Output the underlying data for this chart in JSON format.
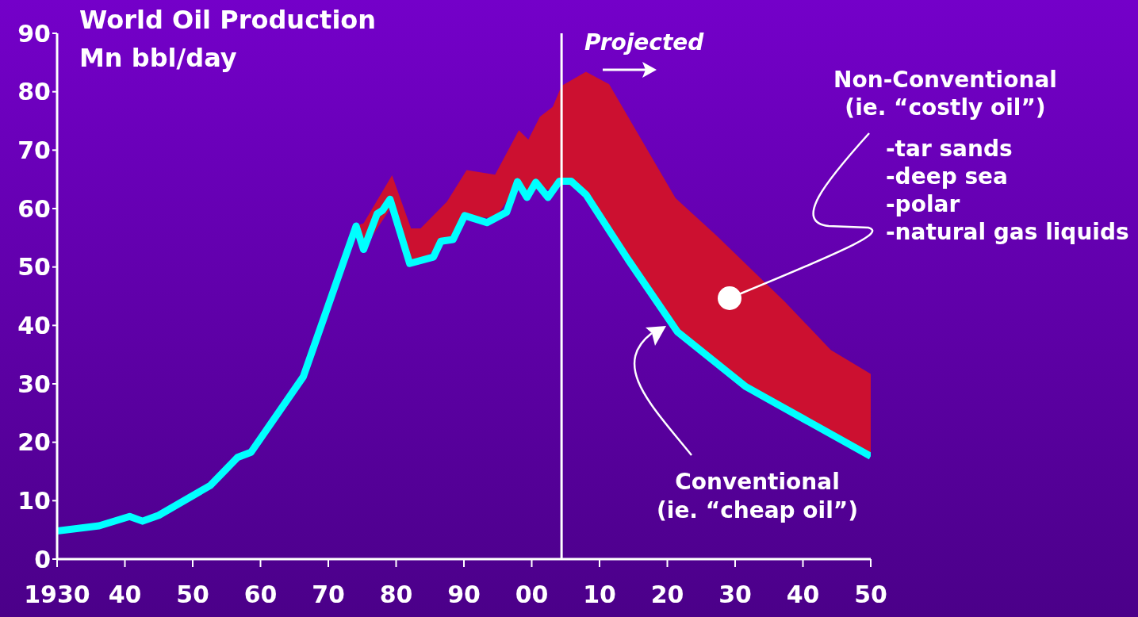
{
  "chart_data": {
    "type": "line",
    "title": "World Oil Production",
    "ylabel": "Mn bbl/day",
    "xlim": [
      1930,
      2050
    ],
    "xticks": [
      {
        "value": 1930,
        "label": "1930"
      },
      {
        "value": 1940,
        "label": "40"
      },
      {
        "value": 1950,
        "label": "50"
      },
      {
        "value": 1960,
        "label": "60"
      },
      {
        "value": 1970,
        "label": "70"
      },
      {
        "value": 1980,
        "label": "80"
      },
      {
        "value": 1990,
        "label": "90"
      },
      {
        "value": 2000,
        "label": "00"
      },
      {
        "value": 2010,
        "label": "10"
      },
      {
        "value": 2020,
        "label": "20"
      },
      {
        "value": 2030,
        "label": "30"
      },
      {
        "value": 2040,
        "label": "40"
      },
      {
        "value": 2050,
        "label": "50"
      }
    ],
    "ylim": [
      0,
      90
    ],
    "yticks": [
      0,
      10,
      20,
      30,
      40,
      50,
      60,
      70,
      80,
      90
    ],
    "series": [
      {
        "type": "area",
        "color": "#cc1030",
        "x": [
          1974.1,
          1975.2,
          1979.4,
          1982.2,
          1983.6,
          1987.5,
          1990.4,
          1994.6,
          1998.1,
          1999.5,
          2001.2,
          2003.1,
          2004.4,
          2008,
          2011.4,
          2021.2,
          2027.4,
          2037.3,
          2044.1,
          2050
        ],
        "values": [
          57,
          57.5,
          65.7,
          56.6,
          56.6,
          61.2,
          66.6,
          65.8,
          73.4,
          71.8,
          75.7,
          77.4,
          81,
          83.4,
          81.3,
          61.8,
          55.2,
          44.1,
          35.8,
          31.7
        ]
      },
      {
        "color": "#00ffff",
        "x": [
          1930,
          1936.2,
          1940.7,
          1942.6,
          1945,
          1952.6,
          1956.6,
          1958.6,
          1966.3,
          1974.1,
          1975.2,
          1977.2,
          1978,
          1979.1,
          1982,
          1985.5,
          1986.6,
          1988.4,
          1990.1,
          1993.4,
          1996.3,
          1997.9,
          1999.3,
          2000.6,
          2002.4,
          2004.1,
          2005.8,
          2008,
          2014.2,
          2021.5,
          2031.6,
          2050
        ],
        "values": [
          4.8,
          5.7,
          7.3,
          6.5,
          7.5,
          12.6,
          17.4,
          18.3,
          31.2,
          57,
          53,
          59.1,
          59.7,
          61.6,
          50.6,
          51.7,
          54.4,
          54.7,
          58.8,
          57.6,
          59.4,
          64.6,
          61.9,
          64.5,
          61.9,
          64.7,
          64.7,
          62.4,
          51.3,
          38.9,
          29.5,
          17.6
        ]
      }
    ],
    "ref_lines": [
      {
        "axis": "x",
        "value": 2004.4,
        "color": "#ffffff"
      }
    ],
    "annotations": [
      "Projected",
      "Non-Conventional\n(ie. “costly oil”)",
      "-tar sands\n-deep sea\n-polar\n-natural gas liquids",
      "Conventional\n(ie. “cheap oil”)"
    ],
    "grid": false,
    "legend": false,
    "line_style": "solid",
    "marker": "none"
  }
}
